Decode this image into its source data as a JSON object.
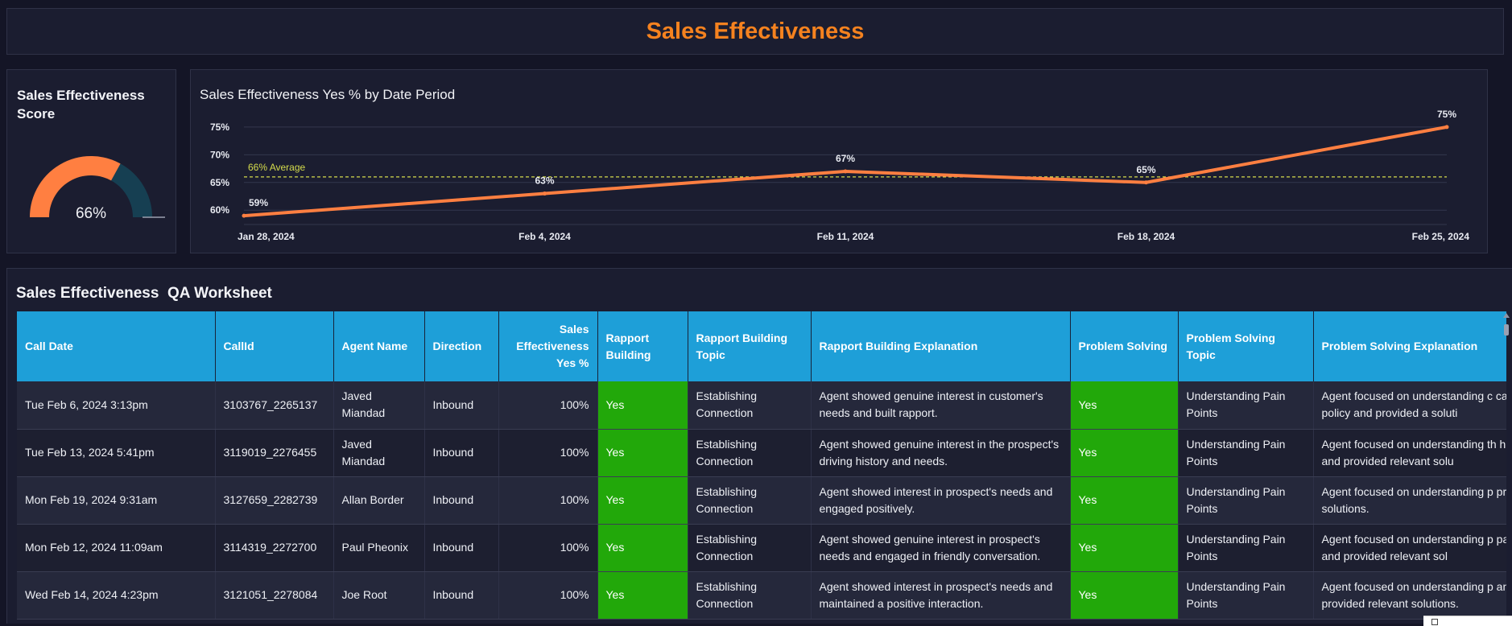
{
  "header": {
    "title": "Sales Effectiveness"
  },
  "score": {
    "title": "Sales Effectiveness Score",
    "value": 66,
    "label": "66%",
    "fill_color": "#ff7f41",
    "track_color": "#163f52"
  },
  "chart_data": {
    "type": "line",
    "title": "Sales Effectiveness Yes % by Date Period",
    "categories": [
      "Jan 28, 2024",
      "Feb 4, 2024",
      "Feb 11, 2024",
      "Feb 18, 2024",
      "Feb 25, 2024"
    ],
    "series": [
      {
        "name": "Sales Effectiveness Yes %",
        "values": [
          59,
          63,
          67,
          65,
          75
        ],
        "color": "#ff7f41"
      }
    ],
    "data_labels": [
      "59%",
      "63%",
      "67%",
      "65%",
      "75%"
    ],
    "ylim": [
      58,
      76
    ],
    "yticks": [
      60,
      65,
      70,
      75
    ],
    "ytick_labels": [
      "60%",
      "65%",
      "70%",
      "75%"
    ],
    "reference_line": {
      "value": 66,
      "label": "66% Average",
      "color": "#d5dc4c"
    },
    "grid": true,
    "xlabel": "",
    "ylabel": ""
  },
  "worksheet": {
    "title": "Sales Effectiveness  QA Worksheet",
    "columns": [
      "Call Date",
      "CallId",
      "Agent Name",
      "Direction",
      "Sales Effectiveness Yes %",
      "Rapport Building",
      "Rapport Building Topic",
      "Rapport Building Explanation",
      "Problem Solving",
      "Problem Solving Topic",
      "Problem Solving Explanation"
    ],
    "rows": [
      [
        "Tue Feb 6, 2024 3:13pm",
        "3103767_2265137",
        "Javed Miandad",
        "Inbound",
        "100%",
        "Yes",
        "Establishing Connection",
        "Agent showed genuine interest in customer's needs and built rapport.",
        "Yes",
        "Understanding Pain Points",
        "Agent focused on understanding c cancel policy and provided a soluti"
      ],
      [
        "Tue Feb 13, 2024 5:41pm",
        "3119019_2276455",
        "Javed Miandad",
        "Inbound",
        "100%",
        "Yes",
        "Establishing Connection",
        "Agent showed genuine interest in the prospect's driving history and needs.",
        "Yes",
        "Understanding Pain Points",
        "Agent focused on understanding th history and provided relevant solu"
      ],
      [
        "Mon Feb 19, 2024 9:31am",
        "3127659_2282739",
        "Allan Border",
        "Inbound",
        "100%",
        "Yes",
        "Establishing Connection",
        "Agent showed interest in prospect's needs and engaged positively.",
        "Yes",
        "Understanding Pain Points",
        "Agent focused on understanding p provided solutions."
      ],
      [
        "Mon Feb 12, 2024 11:09am",
        "3114319_2272700",
        "Paul Pheonix",
        "Inbound",
        "100%",
        "Yes",
        "Establishing Connection",
        "Agent showed genuine interest in prospect's needs and engaged in friendly conversation.",
        "Yes",
        "Understanding Pain Points",
        "Agent focused on understanding p payment and provided relevant sol"
      ],
      [
        "Wed Feb 14, 2024 4:23pm",
        "3121051_2278084",
        "Joe Root",
        "Inbound",
        "100%",
        "Yes",
        "Establishing Connection",
        "Agent showed interest in prospect's needs and maintained a positive interaction.",
        "Yes",
        "Understanding Pain Points",
        "Agent focused on understanding p and provided relevant solutions."
      ]
    ]
  }
}
